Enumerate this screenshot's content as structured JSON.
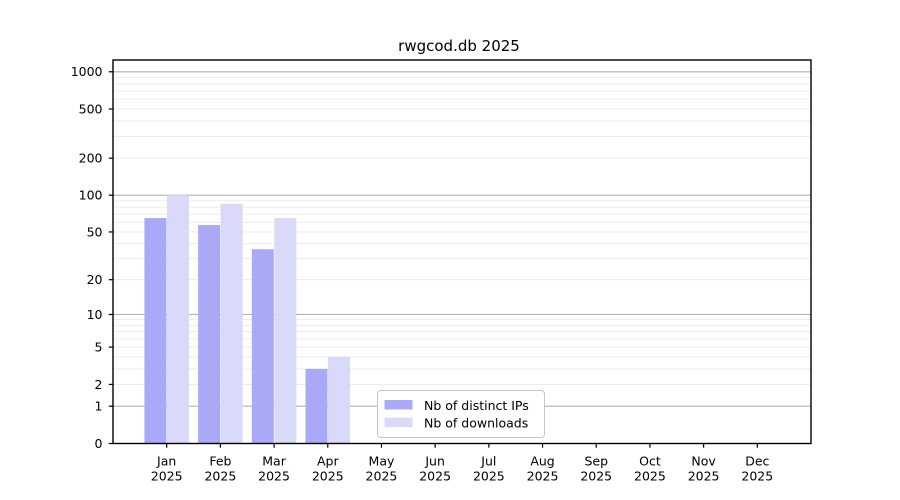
{
  "title": "rwgcod.db 2025",
  "chart_data": {
    "type": "bar",
    "title": "rwgcod.db 2025",
    "categories": [
      "Jan",
      "Feb",
      "Mar",
      "Apr",
      "May",
      "Jun",
      "Jul",
      "Aug",
      "Sep",
      "Oct",
      "Nov",
      "Dec"
    ],
    "category_year": "2025",
    "series": [
      {
        "name": "Nb of distinct IPs",
        "color": "#a9a9f8",
        "values": [
          65,
          57,
          36,
          3,
          0,
          0,
          0,
          0,
          0,
          0,
          0,
          0
        ]
      },
      {
        "name": "Nb of downloads",
        "color": "#d9d9fa",
        "values": [
          100,
          85,
          65,
          4,
          0,
          0,
          0,
          0,
          0,
          0,
          0,
          0
        ]
      }
    ],
    "y_axis": {
      "scale": "log1p",
      "tick_values": [
        0,
        1,
        2,
        5,
        10,
        20,
        50,
        100,
        200,
        500,
        1000
      ],
      "major_gridlines": [
        1,
        10,
        100,
        1000
      ],
      "minor_gridlines": [
        2,
        3,
        4,
        5,
        6,
        7,
        8,
        9,
        20,
        30,
        40,
        50,
        60,
        70,
        80,
        90,
        200,
        300,
        400,
        500,
        600,
        700,
        800,
        900
      ],
      "min": 0,
      "max": 1245
    },
    "x_axis": {
      "label_line2": "2025"
    },
    "legend": {
      "position": "bottom-center"
    },
    "grid": true,
    "colors": {
      "major_grid": "#b2b2b2",
      "minor_grid": "#e9e9e9",
      "spine": "#000000",
      "legend_border": "#c4c4c4",
      "background": "#ffffff"
    }
  }
}
